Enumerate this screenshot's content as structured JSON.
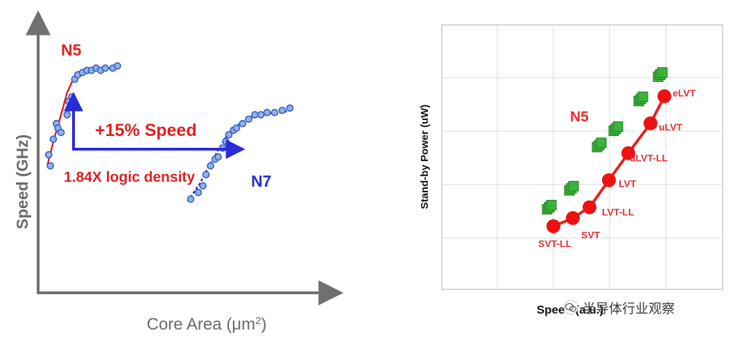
{
  "chart_data": [
    {
      "type": "scatter",
      "title": "",
      "xlabel": "Core Area (μm",
      "xlabel_sup": "2",
      "xlabel_close": ")",
      "ylabel": "Speed  (GHz)",
      "axes_ticks": "none",
      "grid": false,
      "colors": {
        "N5": "#e02020",
        "N7": "#2030d0",
        "point_fill": "#8fb3e6",
        "point_edge": "#3a5cc8",
        "axis": "#707070",
        "arrow": "#2a2ad8"
      },
      "series": [
        {
          "name": "N5",
          "points": [
            [
              0.07,
              0.6
            ],
            [
              0.08,
              0.55
            ],
            [
              0.1,
              0.67
            ],
            [
              0.12,
              0.74
            ],
            [
              0.13,
              0.72
            ],
            [
              0.15,
              0.7
            ],
            [
              0.19,
              0.78
            ],
            [
              0.2,
              0.84
            ],
            [
              0.22,
              0.86
            ],
            [
              0.24,
              0.94
            ],
            [
              0.26,
              0.96
            ],
            [
              0.29,
              0.97
            ],
            [
              0.32,
              0.98
            ],
            [
              0.35,
              0.98
            ],
            [
              0.38,
              0.99
            ],
            [
              0.41,
              0.98
            ],
            [
              0.44,
              0.99
            ],
            [
              0.49,
              0.99
            ],
            [
              0.52,
              1.0
            ]
          ],
          "fit": [
            [
              0.06,
              0.55
            ],
            [
              0.1,
              0.66
            ],
            [
              0.15,
              0.78
            ],
            [
              0.19,
              0.88
            ],
            [
              0.23,
              0.94
            ],
            [
              0.28,
              0.97
            ],
            [
              0.35,
              0.98
            ],
            [
              0.43,
              0.985
            ],
            [
              0.52,
              1.0
            ]
          ]
        },
        {
          "name": "N7",
          "points": [
            [
              1.0,
              0.4
            ],
            [
              1.05,
              0.43
            ],
            [
              1.08,
              0.46
            ],
            [
              1.1,
              0.51
            ],
            [
              1.13,
              0.55
            ],
            [
              1.16,
              0.58
            ],
            [
              1.18,
              0.59
            ],
            [
              1.21,
              0.63
            ],
            [
              1.23,
              0.66
            ],
            [
              1.25,
              0.69
            ],
            [
              1.28,
              0.71
            ],
            [
              1.3,
              0.72
            ],
            [
              1.34,
              0.74
            ],
            [
              1.38,
              0.76
            ],
            [
              1.42,
              0.78
            ],
            [
              1.46,
              0.78
            ],
            [
              1.5,
              0.79
            ],
            [
              1.55,
              0.79
            ],
            [
              1.6,
              0.8
            ],
            [
              1.65,
              0.81
            ]
          ],
          "fit": [
            [
              0.98,
              0.39
            ],
            [
              1.06,
              0.47
            ],
            [
              1.12,
              0.55
            ],
            [
              1.18,
              0.62
            ],
            [
              1.24,
              0.69
            ],
            [
              1.3,
              0.73
            ],
            [
              1.4,
              0.77
            ],
            [
              1.5,
              0.785
            ],
            [
              1.6,
              0.79
            ],
            [
              1.65,
              0.8
            ]
          ]
        }
      ],
      "annotations": {
        "speed_gain": "+15% Speed",
        "density_gain": "1.84X logic density"
      }
    },
    {
      "type": "scatter",
      "title": "",
      "xlabel": "Speed (a.u.)",
      "ylabel": "Stand-by Power  (uW)",
      "grid": true,
      "axes_ticks": "none",
      "group_label": "N5",
      "colors": {
        "line": "#e62020",
        "dot": "#ee1111",
        "marker_green": "#3bb33b",
        "grid": "#d9d9d9",
        "label": "#e03030"
      },
      "series": [
        {
          "name": "N5",
          "labels": [
            "SVT-LL",
            "SVT",
            "LVT-LL",
            "LVT",
            "uLVT-LL",
            "uLVT",
            "eLVT"
          ],
          "x": [
            1.0,
            1.35,
            1.65,
            2.0,
            2.35,
            2.75,
            3.0
          ],
          "y": [
            1.0,
            1.15,
            1.35,
            1.85,
            2.35,
            2.9,
            3.4
          ]
        }
      ],
      "green_markers": [
        [
          0.9,
          1.3
        ],
        [
          1.3,
          1.65
        ],
        [
          1.8,
          2.45
        ],
        [
          2.1,
          2.75
        ],
        [
          2.55,
          3.3
        ],
        [
          2.9,
          3.75
        ]
      ]
    }
  ],
  "watermark": {
    "text": "半导体行业观察",
    "icon": "wechat-icon"
  }
}
